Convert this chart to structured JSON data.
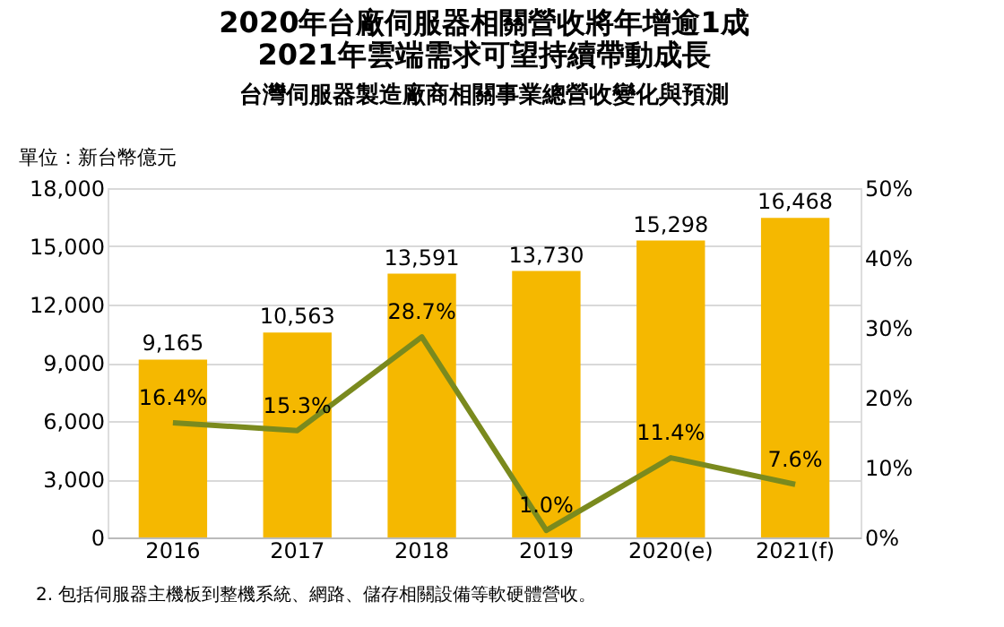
{
  "chart_data": {
    "type": "bar",
    "title": [
      "2020年台廠伺服器相關營收將年增逾1成",
      "2021年雲端需求可望持續帶動成長"
    ],
    "subtitle": "台灣伺服器製造廠商相關事業總營收變化與預測",
    "ylabel": "單位：新台幣億元",
    "categories": [
      "2016",
      "2017",
      "2018",
      "2019",
      "2020(e)",
      "2021(f)"
    ],
    "series": [
      {
        "color": "#f5b800",
        "values": [
          9165,
          10563,
          13591,
          13730,
          15298,
          16468
        ],
        "value_labels": [
          "9,165",
          "10,563",
          "13,591",
          "13,730",
          "15,298",
          "16,468"
        ]
      },
      {
        "type": "line",
        "axis": "y2",
        "color": "#7a8a1e",
        "values": [
          16.4,
          15.3,
          28.7,
          1.0,
          11.4,
          7.6
        ],
        "value_labels": [
          "16.4%",
          "15.3%",
          "28.7%",
          "1.0%",
          "11.4%",
          "7.6%"
        ]
      }
    ],
    "ylim": [
      0,
      18000
    ],
    "yticks": [
      0,
      {
        "value": 3000,
        "label": "3,000"
      },
      {
        "value": 6000,
        "label": "6,000"
      },
      {
        "value": 9000,
        "label": "9,000"
      },
      {
        "value": 12000,
        "label": "12,000"
      },
      {
        "value": 15000,
        "label": "15,000"
      },
      {
        "value": 18000,
        "label": "18,000"
      }
    ],
    "y2lim": [
      0,
      50
    ],
    "y2ticks": [
      {
        "value": 0,
        "label": "0%"
      },
      {
        "value": 10,
        "label": "10%"
      },
      {
        "value": 20,
        "label": "20%"
      },
      {
        "value": 30,
        "label": "30%"
      },
      {
        "value": 40,
        "label": "40%"
      },
      {
        "value": 50,
        "label": "50%"
      }
    ],
    "grid": "y",
    "annotations": [
      "2. 包括伺服器主機板到整機系統、網路、儲存相關設備等軟硬體營收。"
    ]
  }
}
